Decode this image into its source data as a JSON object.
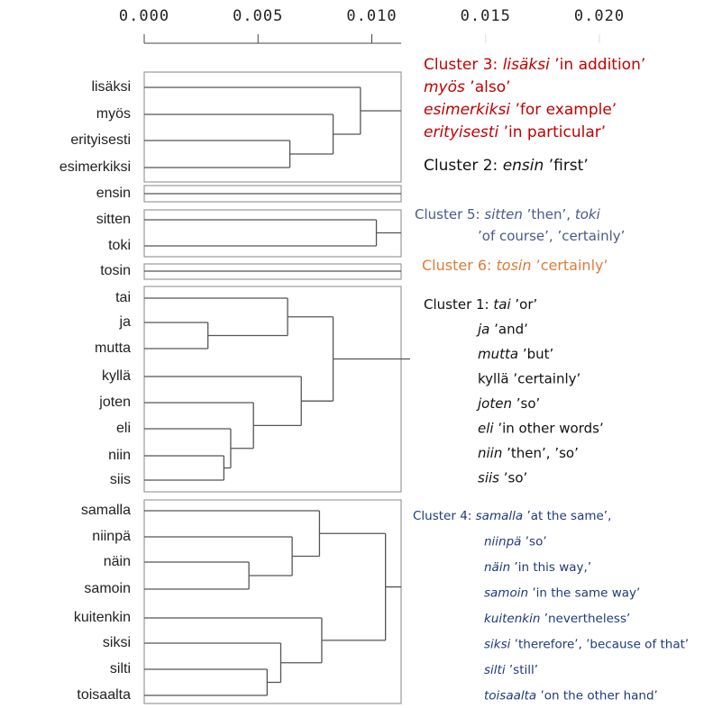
{
  "chart_data": {
    "type": "dendrogram",
    "xlim": [
      0,
      0.02
    ],
    "xticks": [
      {
        "value": 0,
        "label": "0.000"
      },
      0.005,
      {
        "value": 0.01,
        "label": "0.010"
      },
      0.015,
      {
        "value": 0.02,
        "label": "0.020"
      }
    ],
    "clusters": [
      {
        "leaves": [
          "lisäksi",
          "myös",
          "erityisesti",
          "esimerkiksi"
        ],
        "merges": [
          {
            "children": [
              2,
              3
            ],
            "height": 0.0064
          },
          {
            "children": [
              1,
              4
            ],
            "height": 0.0083
          },
          {
            "children": [
              0,
              5
            ],
            "height": 0.0095
          }
        ],
        "annotation": {
          "color": "#c00000",
          "lines": [
            [
              {
                "text": "Cluster 3: "
              },
              {
                "text": "lisäksi",
                "italic": true
              },
              {
                "text": " ’in addition’"
              }
            ],
            [
              {
                "text": "myös",
                "italic": true
              },
              {
                "text": " ’also’"
              }
            ],
            [
              {
                "text": "esimerkiksi",
                "italic": true
              },
              {
                "text": " ’for example’"
              }
            ],
            [
              {
                "text": "erityisesti",
                "italic": true
              },
              {
                "text": " ’in particular’"
              }
            ]
          ]
        }
      },
      {
        "leaves": [
          "ensin"
        ],
        "merges": [],
        "annotation": {
          "color": "#111111",
          "lines": [
            [
              {
                "text": "Cluster 2: "
              },
              {
                "text": "ensin",
                "italic": true
              },
              {
                "text": " ’first’"
              }
            ]
          ]
        }
      },
      {
        "leaves": [
          "sitten",
          "toki"
        ],
        "merges": [
          {
            "children": [
              0,
              1
            ],
            "height": 0.0102
          }
        ],
        "annotation": {
          "color": "#4a5a8a",
          "lines": [
            [
              {
                "text": "Cluster 5: "
              },
              {
                "text": "sitten",
                "italic": true
              },
              {
                "text": " ’then’, "
              },
              {
                "text": "toki",
                "italic": true
              }
            ],
            [
              {
                "text": "’of course’, ’certainly’"
              }
            ]
          ]
        }
      },
      {
        "leaves": [
          "tosin"
        ],
        "merges": [],
        "annotation": {
          "color": "#e07b39",
          "lines": [
            [
              {
                "text": "Cluster 6: "
              },
              {
                "text": "tosin",
                "italic": true
              },
              {
                "text": " ’certainly’"
              }
            ]
          ]
        }
      },
      {
        "leaves": [
          "tai",
          "ja",
          "mutta",
          "kyllä",
          "joten",
          "eli",
          "niin",
          "siis"
        ],
        "merges": [
          {
            "children": [
              1,
              2
            ],
            "height": 0.0028
          },
          {
            "children": [
              0,
              8
            ],
            "height": 0.0063
          },
          {
            "children": [
              6,
              7
            ],
            "height": 0.0035
          },
          {
            "children": [
              5,
              10
            ],
            "height": 0.0038
          },
          {
            "children": [
              4,
              11
            ],
            "height": 0.0048
          },
          {
            "children": [
              3,
              12
            ],
            "height": 0.0069
          },
          {
            "children": [
              9,
              13
            ],
            "height": 0.0083
          }
        ],
        "annotation": {
          "color": "#111111",
          "lines": [
            [
              {
                "text": "Cluster 1: "
              },
              {
                "text": "tai",
                "italic": true
              },
              {
                "text": " ’or’"
              }
            ],
            [
              {
                "text": "ja",
                "italic": true
              },
              {
                "text": " ’and’"
              }
            ],
            [
              {
                "text": "mutta",
                "italic": true
              },
              {
                "text": " ’but’"
              }
            ],
            [
              {
                "text": "kyllä ’certainly’"
              }
            ],
            [
              {
                "text": "joten",
                "italic": true
              },
              {
                "text": " ’so’"
              }
            ],
            [
              {
                "text": "eli",
                "italic": true
              },
              {
                "text": " ’in other words’"
              }
            ],
            [
              {
                "text": "niin",
                "italic": true
              },
              {
                "text": " ’then’, ’so’"
              }
            ],
            [
              {
                "text": "siis",
                "italic": true
              },
              {
                "text": " ’so’"
              }
            ]
          ]
        }
      },
      {
        "leaves": [
          "samalla",
          "niinpä",
          "näin",
          "samoin",
          "kuitenkin",
          "siksi",
          "silti",
          "toisaalta"
        ],
        "merges": [
          {
            "children": [
              2,
              3
            ],
            "height": 0.0046
          },
          {
            "children": [
              1,
              8
            ],
            "height": 0.0065
          },
          {
            "children": [
              0,
              9
            ],
            "height": 0.0077
          },
          {
            "children": [
              6,
              7
            ],
            "height": 0.0054
          },
          {
            "children": [
              5,
              11
            ],
            "height": 0.006
          },
          {
            "children": [
              4,
              12
            ],
            "height": 0.0078
          },
          {
            "children": [
              10,
              13
            ],
            "height": 0.0106
          }
        ],
        "annotation": {
          "color": "#1f3a7a",
          "lines": [
            [
              {
                "text": "Cluster 4: "
              },
              {
                "text": "samalla",
                "italic": true
              },
              {
                "text": " ’at the same’,"
              }
            ],
            [
              {
                "text": "niinpä",
                "italic": true
              },
              {
                "text": " ’so’"
              }
            ],
            [
              {
                "text": "näin",
                "italic": true
              },
              {
                "text": " ’in this way,’"
              }
            ],
            [
              {
                "text": "samoin",
                "italic": true
              },
              {
                "text": " ’in the same way’"
              }
            ],
            [
              {
                "text": "kuitenkin",
                "italic": true
              },
              {
                "text": " ’nevertheless’"
              }
            ],
            [
              {
                "text": "siksi",
                "italic": true
              },
              {
                "text": " ’therefore’, ’because of that’"
              }
            ],
            [
              {
                "text": "silti",
                "italic": true
              },
              {
                "text": " ’still’"
              }
            ],
            [
              {
                "text": "toisaalta",
                "italic": true
              },
              {
                "text": " ’on the other hand’"
              }
            ]
          ]
        }
      }
    ]
  }
}
